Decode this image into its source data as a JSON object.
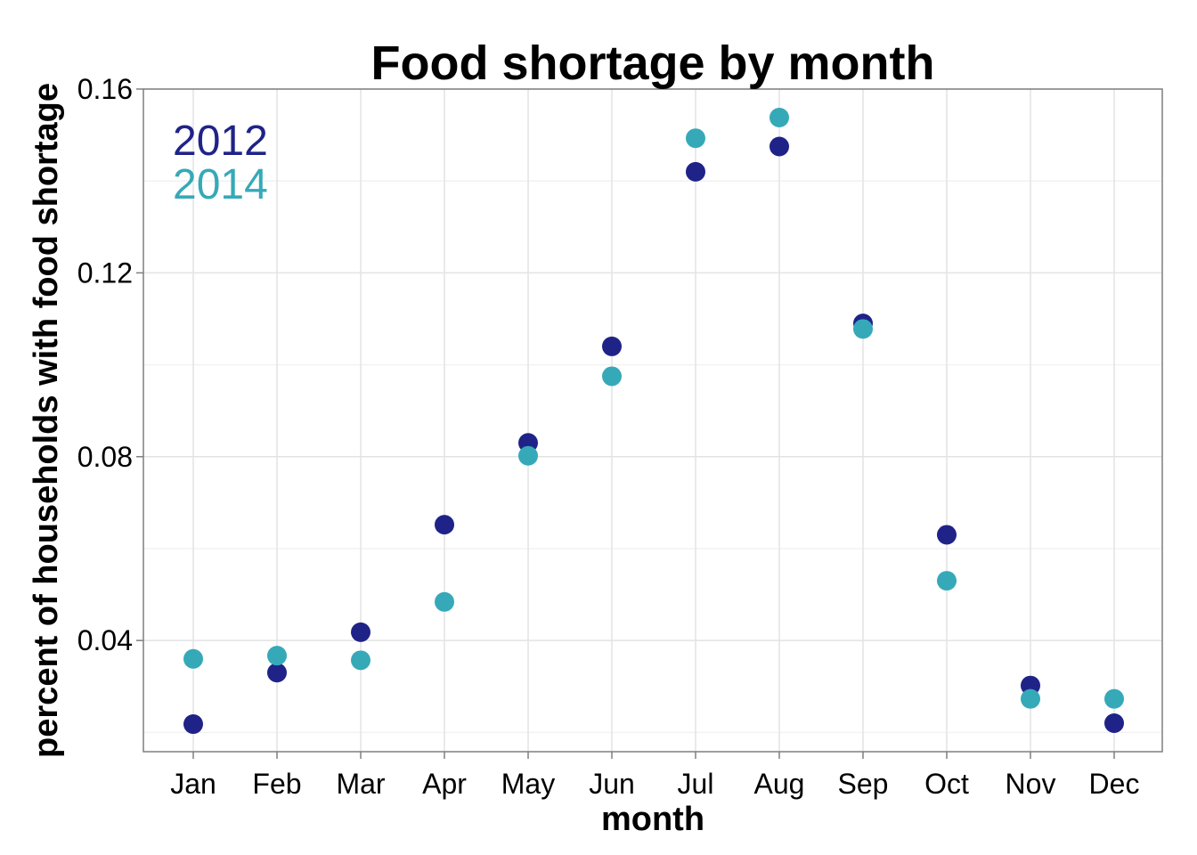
{
  "chart_data": {
    "type": "scatter",
    "title": "Food shortage by month",
    "xlabel": "month",
    "ylabel": "percent of households with food shortage",
    "categories": [
      "Jan",
      "Feb",
      "Mar",
      "Apr",
      "May",
      "Jun",
      "Jul",
      "Aug",
      "Sep",
      "Oct",
      "Nov",
      "Dec"
    ],
    "y_ticks": [
      "0.04",
      "0.08",
      "0.12",
      "0.16"
    ],
    "y_tick_values": [
      0.04,
      0.08,
      0.12,
      0.16
    ],
    "ylim": [
      0.0158,
      0.16
    ],
    "grid": true,
    "legend_position": "top-left",
    "series": [
      {
        "name": "2012",
        "color": "#1f2388",
        "values": [
          0.0218,
          0.033,
          0.0418,
          0.0652,
          0.083,
          0.104,
          0.142,
          0.1475,
          0.109,
          0.063,
          0.0302,
          0.022
        ]
      },
      {
        "name": "2014",
        "color": "#36a9b8",
        "values": [
          0.036,
          0.0367,
          0.0357,
          0.0484,
          0.0802,
          0.0975,
          0.1493,
          0.1538,
          0.1078,
          0.053,
          0.0273,
          0.0273
        ]
      }
    ]
  }
}
